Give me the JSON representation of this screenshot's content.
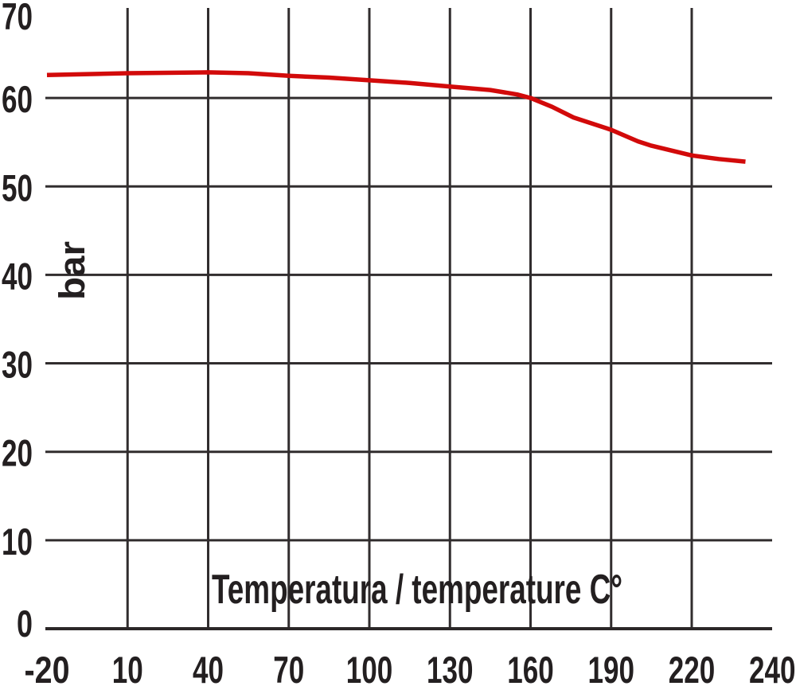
{
  "page": {
    "background_color": "#ffffff"
  },
  "chart_data": {
    "type": "line",
    "title": "",
    "xlabel": "Temperatura / temperature C°",
    "ylabel": "bar",
    "grid": true,
    "legend": false,
    "text_color": "#231f20",
    "grid_color": "#312d2e",
    "axis_color": "#2b2728",
    "curve_color": "#d20a0a",
    "ylim": [
      0,
      70
    ],
    "xlim_uniform_scale": [
      -20,
      250
    ],
    "y_tick_labels": [
      "70",
      "60",
      "50",
      "40",
      "30",
      "20",
      "10",
      "0"
    ],
    "y_tick_values": [
      70,
      60,
      50,
      40,
      30,
      20,
      10,
      0
    ],
    "y_gridline_values": [
      60,
      50,
      40,
      30,
      20,
      10
    ],
    "x_tick_labels": [
      "-20",
      "10",
      "40",
      "70",
      "100",
      "130",
      "160",
      "190",
      "220",
      "240"
    ],
    "x_tick_positions_on_uniform_scale": [
      -20,
      10,
      40,
      70,
      100,
      130,
      160,
      190,
      220,
      250
    ],
    "x_gridline_positions_on_uniform_scale": [
      10,
      40,
      70,
      100,
      130,
      160,
      190,
      220
    ],
    "series": [
      {
        "color": "#d20a0a",
        "points_temperature_bar": [
          [
            -20,
            62.6
          ],
          [
            10,
            62.8
          ],
          [
            40,
            62.9
          ],
          [
            55,
            62.8
          ],
          [
            70,
            62.5
          ],
          [
            85,
            62.3
          ],
          [
            100,
            62.0
          ],
          [
            115,
            61.7
          ],
          [
            130,
            61.3
          ],
          [
            145,
            60.9
          ],
          [
            155,
            60.4
          ],
          [
            160,
            60.0
          ],
          [
            168,
            59.0
          ],
          [
            176,
            57.8
          ],
          [
            190,
            56.4
          ],
          [
            200,
            55.1
          ],
          [
            205,
            54.6
          ],
          [
            220,
            53.5
          ],
          [
            230,
            53.1
          ],
          [
            240,
            52.8
          ]
        ]
      }
    ]
  }
}
